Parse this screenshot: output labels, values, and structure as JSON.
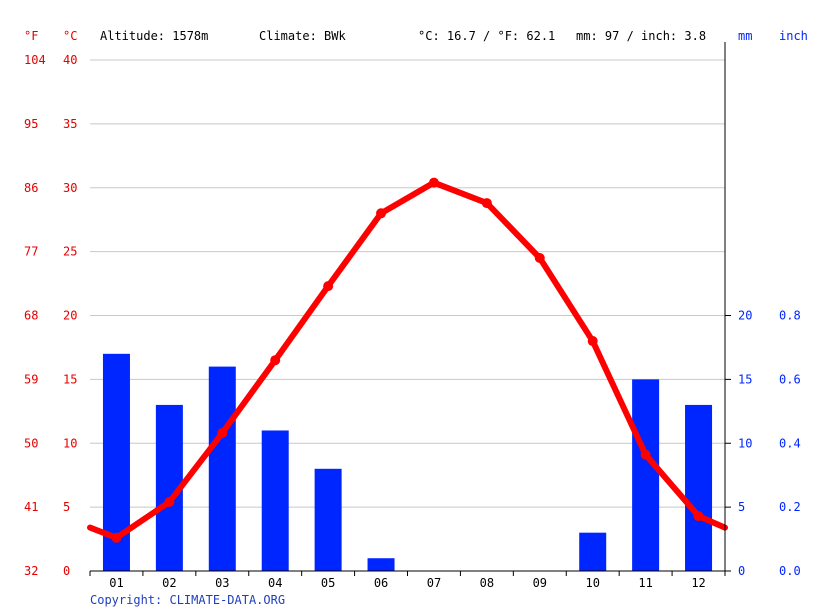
{
  "header": {
    "unit_f": "°F",
    "unit_c": "°C",
    "altitude": "Altitude: 1578m",
    "climate": "Climate: BWk",
    "temp_avg": "°C: 16.7 / °F: 62.1",
    "precip_total": "mm: 97 / inch: 3.8",
    "unit_mm": "mm",
    "unit_inch": "inch"
  },
  "footer": {
    "copyright": "Copyright: CLIMATE-DATA.ORG"
  },
  "colors": {
    "temperature": "#ff0000",
    "precipitation": "#0026ff",
    "axis_temp": "#e60000",
    "axis_precip": "#0026ff",
    "grid": "#c8c8c8"
  },
  "chart_data": {
    "type": "bar+line",
    "categories": [
      "01",
      "02",
      "03",
      "04",
      "05",
      "06",
      "07",
      "08",
      "09",
      "10",
      "11",
      "12"
    ],
    "series": [
      {
        "type": "bar",
        "axis": "right-mm",
        "values": [
          17,
          13,
          16,
          11,
          8,
          1,
          0,
          0,
          0,
          3,
          15,
          13
        ]
      },
      {
        "type": "line",
        "axis": "left-celsius",
        "values": [
          2.6,
          5.4,
          10.8,
          16.5,
          22.3,
          28.0,
          30.4,
          28.8,
          24.5,
          18.0,
          9.1,
          4.3
        ]
      }
    ],
    "temp_line_edges": {
      "start": 3.4,
      "end": 3.4
    },
    "y_celsius": {
      "ticks": [
        "0",
        "5",
        "10",
        "15",
        "20",
        "25",
        "30",
        "35",
        "40"
      ],
      "range": [
        0,
        40
      ]
    },
    "y_fahrenheit": {
      "ticks": [
        "32",
        "41",
        "50",
        "59",
        "68",
        "77",
        "86",
        "95",
        "104"
      ]
    },
    "y_mm": {
      "ticks": [
        "0",
        "5",
        "10",
        "15",
        "20"
      ],
      "range": [
        0,
        40
      ]
    },
    "y_inch": {
      "ticks": [
        "0.0",
        "0.2",
        "0.4",
        "0.6",
        "0.8"
      ]
    },
    "grid": true
  }
}
